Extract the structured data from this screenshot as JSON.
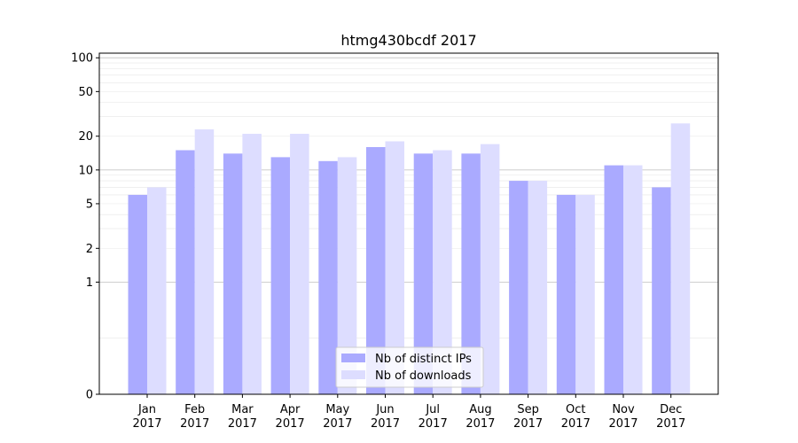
{
  "chart_data": {
    "type": "bar",
    "title": "htmg430bcdf 2017",
    "xlabel": "",
    "ylabel": "",
    "yscale": "symlog",
    "ylim": [
      0,
      110
    ],
    "yticks": [
      0,
      1,
      2,
      5,
      10,
      20,
      50,
      100
    ],
    "ytick_labels": [
      "0",
      "1",
      "2",
      "5",
      "10",
      "20",
      "50",
      "100"
    ],
    "categories": [
      "Jan\n2017",
      "Feb\n2017",
      "Mar\n2017",
      "Apr\n2017",
      "May\n2017",
      "Jun\n2017",
      "Jul\n2017",
      "Aug\n2017",
      "Sep\n2017",
      "Oct\n2017",
      "Nov\n2017",
      "Dec\n2017"
    ],
    "category_lines": [
      [
        "Jan",
        "2017"
      ],
      [
        "Feb",
        "2017"
      ],
      [
        "Mar",
        "2017"
      ],
      [
        "Apr",
        "2017"
      ],
      [
        "May",
        "2017"
      ],
      [
        "Jun",
        "2017"
      ],
      [
        "Jul",
        "2017"
      ],
      [
        "Aug",
        "2017"
      ],
      [
        "Sep",
        "2017"
      ],
      [
        "Oct",
        "2017"
      ],
      [
        "Nov",
        "2017"
      ],
      [
        "Dec",
        "2017"
      ]
    ],
    "series": [
      {
        "name": "Nb of distinct IPs",
        "color": "#aaaaff",
        "values": [
          6,
          15,
          14,
          13,
          12,
          16,
          14,
          14,
          8,
          6,
          11,
          7
        ]
      },
      {
        "name": "Nb of downloads",
        "color": "#ddddff",
        "values": [
          7,
          23,
          21,
          21,
          13,
          18,
          15,
          17,
          8,
          6,
          11,
          26
        ]
      }
    ],
    "grid": true,
    "legend": "lower center"
  }
}
